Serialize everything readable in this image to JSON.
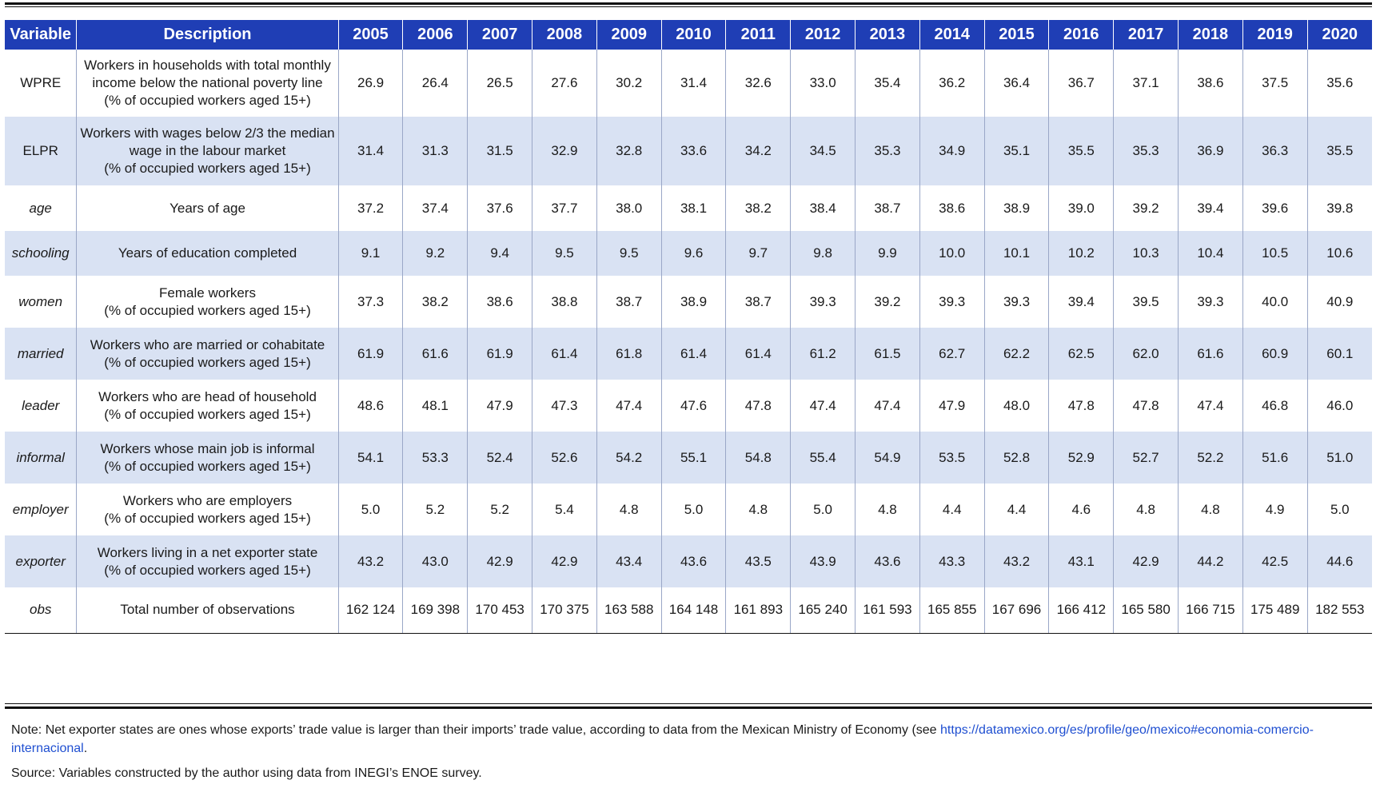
{
  "header": {
    "variable": "Variable",
    "description": "Description",
    "years": [
      "2005",
      "2006",
      "2007",
      "2008",
      "2009",
      "2010",
      "2011",
      "2012",
      "2013",
      "2014",
      "2015",
      "2016",
      "2017",
      "2018",
      "2019",
      "2020"
    ]
  },
  "rows": [
    {
      "variable": "WPRE",
      "italic": false,
      "shade": false,
      "description": [
        "Workers in households with total monthly",
        "income below the national poverty line",
        "(% of occupied workers aged 15+)"
      ],
      "values": [
        "26.9",
        "26.4",
        "26.5",
        "27.6",
        "30.2",
        "31.4",
        "32.6",
        "33.0",
        "35.4",
        "36.2",
        "36.4",
        "36.7",
        "37.1",
        "38.6",
        "37.5",
        "35.6"
      ]
    },
    {
      "variable": "ELPR",
      "italic": false,
      "shade": true,
      "description": [
        "Workers with wages below 2/3 the median",
        "wage in the labour market",
        "(% of occupied workers aged 15+)"
      ],
      "values": [
        "31.4",
        "31.3",
        "31.5",
        "32.9",
        "32.8",
        "33.6",
        "34.2",
        "34.5",
        "35.3",
        "34.9",
        "35.1",
        "35.5",
        "35.3",
        "36.9",
        "36.3",
        "35.5"
      ]
    },
    {
      "variable": "age",
      "italic": true,
      "shade": false,
      "description": [
        "Years of age"
      ],
      "values": [
        "37.2",
        "37.4",
        "37.6",
        "37.7",
        "38.0",
        "38.1",
        "38.2",
        "38.4",
        "38.7",
        "38.6",
        "38.9",
        "39.0",
        "39.2",
        "39.4",
        "39.6",
        "39.8"
      ]
    },
    {
      "variable": "schooling",
      "italic": true,
      "shade": true,
      "description": [
        "Years of education completed"
      ],
      "values": [
        "9.1",
        "9.2",
        "9.4",
        "9.5",
        "9.5",
        "9.6",
        "9.7",
        "9.8",
        "9.9",
        "10.0",
        "10.1",
        "10.2",
        "10.3",
        "10.4",
        "10.5",
        "10.6"
      ]
    },
    {
      "variable": "women",
      "italic": true,
      "shade": false,
      "description": [
        "Female workers",
        "(% of occupied workers aged 15+)"
      ],
      "values": [
        "37.3",
        "38.2",
        "38.6",
        "38.8",
        "38.7",
        "38.9",
        "38.7",
        "39.3",
        "39.2",
        "39.3",
        "39.3",
        "39.4",
        "39.5",
        "39.3",
        "40.0",
        "40.9"
      ]
    },
    {
      "variable": "married",
      "italic": true,
      "shade": true,
      "description": [
        "Workers who are married or cohabitate",
        "(% of occupied workers aged 15+)"
      ],
      "values": [
        "61.9",
        "61.6",
        "61.9",
        "61.4",
        "61.8",
        "61.4",
        "61.4",
        "61.2",
        "61.5",
        "62.7",
        "62.2",
        "62.5",
        "62.0",
        "61.6",
        "60.9",
        "60.1"
      ]
    },
    {
      "variable": "leader",
      "italic": true,
      "shade": false,
      "description": [
        "Workers who are head of household",
        "(% of occupied workers aged 15+)"
      ],
      "values": [
        "48.6",
        "48.1",
        "47.9",
        "47.3",
        "47.4",
        "47.6",
        "47.8",
        "47.4",
        "47.4",
        "47.9",
        "48.0",
        "47.8",
        "47.8",
        "47.4",
        "46.8",
        "46.0"
      ]
    },
    {
      "variable": "informal",
      "italic": true,
      "shade": true,
      "description": [
        "Workers whose main job is informal",
        "(% of occupied workers aged 15+)"
      ],
      "values": [
        "54.1",
        "53.3",
        "52.4",
        "52.6",
        "54.2",
        "55.1",
        "54.8",
        "55.4",
        "54.9",
        "53.5",
        "52.8",
        "52.9",
        "52.7",
        "52.2",
        "51.6",
        "51.0"
      ]
    },
    {
      "variable": "employer",
      "italic": true,
      "shade": false,
      "description": [
        "Workers who are employers",
        "(% of occupied workers aged 15+)"
      ],
      "values": [
        "5.0",
        "5.2",
        "5.2",
        "5.4",
        "4.8",
        "5.0",
        "4.8",
        "5.0",
        "4.8",
        "4.4",
        "4.4",
        "4.6",
        "4.8",
        "4.8",
        "4.9",
        "5.0"
      ]
    },
    {
      "variable": "exporter",
      "italic": true,
      "shade": true,
      "description": [
        "Workers living in a net exporter state",
        "(% of occupied workers aged 15+)"
      ],
      "values": [
        "43.2",
        "43.0",
        "42.9",
        "42.9",
        "43.4",
        "43.6",
        "43.5",
        "43.9",
        "43.6",
        "43.3",
        "43.2",
        "43.1",
        "42.9",
        "44.2",
        "42.5",
        "44.6"
      ]
    },
    {
      "variable": "obs",
      "italic": true,
      "shade": false,
      "description": [
        "Total number of observations"
      ],
      "values": [
        "162 124",
        "169 398",
        "170 453",
        "170 375",
        "163 588",
        "164 148",
        "161 893",
        "165 240",
        "161 593",
        "165 855",
        "167 696",
        "166 412",
        "165 580",
        "166 715",
        "175 489",
        "182 553"
      ]
    }
  ],
  "notes": {
    "note_prefix": "Note: Net exporter states are ones whose exports’ trade value is larger than their imports’ trade value, according to data from the Mexican Ministry of Economy (see ",
    "note_link": "https://datamexico.org/es/profile/geo/mexico#economia-comercio-internacional",
    "note_suffix": ".",
    "source": "Source: Variables constructed by the author using data from INEGI’s ENOE survey."
  }
}
